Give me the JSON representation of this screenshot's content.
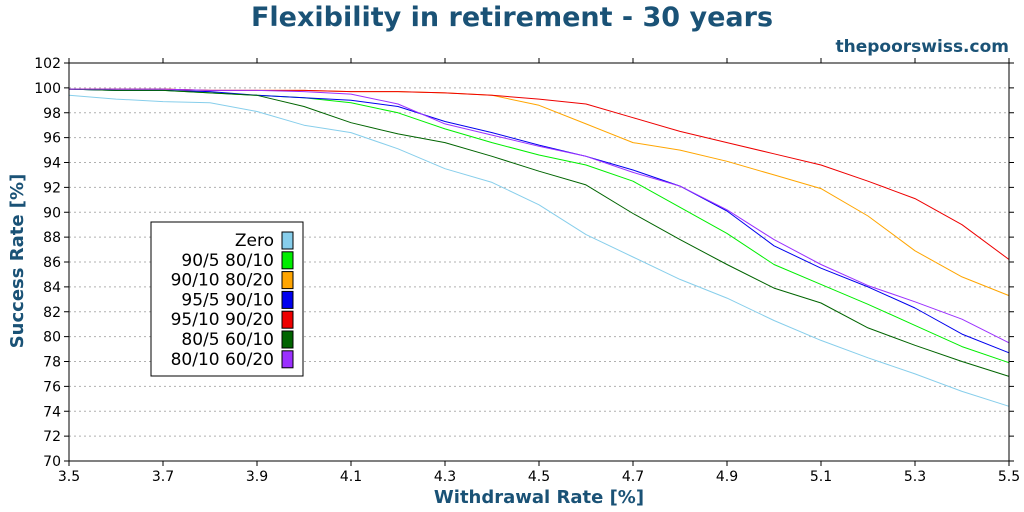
{
  "chart_data": {
    "type": "line",
    "title": "Flexibility in retirement - 30 years",
    "source": "thepoorswiss.com",
    "xlabel": "Withdrawal Rate [%]",
    "ylabel": "Success Rate [%]",
    "xlim": [
      3.5,
      5.5
    ],
    "ylim": [
      70,
      102
    ],
    "x_ticks": [
      "3.5",
      "3.7",
      "3.9",
      "4.1",
      "4.3",
      "4.5",
      "4.7",
      "4.9",
      "5.1",
      "5.3",
      "5.5"
    ],
    "y_ticks": [
      "70",
      "72",
      "74",
      "76",
      "78",
      "80",
      "82",
      "84",
      "86",
      "88",
      "90",
      "92",
      "94",
      "96",
      "98",
      "100",
      "102"
    ],
    "grid": "horizontal dotted",
    "legend_position": "center-left",
    "x": [
      3.5,
      3.6,
      3.7,
      3.8,
      3.9,
      4.0,
      4.1,
      4.2,
      4.3,
      4.4,
      4.5,
      4.6,
      4.7,
      4.8,
      4.9,
      5.0,
      5.1,
      5.2,
      5.3,
      5.4,
      5.5
    ],
    "series": [
      {
        "name": "Zero",
        "color": "#87CEEB",
        "values": [
          99.4,
          99.1,
          98.9,
          98.8,
          98.1,
          97.0,
          96.4,
          95.1,
          93.5,
          92.4,
          90.6,
          88.2,
          86.4,
          84.6,
          83.1,
          81.3,
          79.7,
          78.3,
          77.0,
          75.6,
          74.4
        ]
      },
      {
        "name": "90/5 80/10",
        "color": "#00EE00",
        "values": [
          99.9,
          99.8,
          99.8,
          99.6,
          99.4,
          99.2,
          98.8,
          98.0,
          96.7,
          95.6,
          94.6,
          93.8,
          92.5,
          90.4,
          88.3,
          85.8,
          84.2,
          82.6,
          80.9,
          79.2,
          77.9
        ]
      },
      {
        "name": "90/10 80/20",
        "color": "#FFA500",
        "values": [
          99.9,
          99.9,
          99.9,
          99.8,
          99.8,
          99.8,
          99.7,
          99.7,
          99.6,
          99.4,
          98.6,
          97.1,
          95.6,
          95.0,
          94.1,
          93.0,
          91.9,
          89.7,
          86.9,
          84.8,
          83.3
        ]
      },
      {
        "name": "95/5 90/10",
        "color": "#0000EE",
        "values": [
          99.9,
          99.8,
          99.8,
          99.7,
          99.4,
          99.2,
          99.0,
          98.5,
          97.3,
          96.4,
          95.4,
          94.5,
          93.4,
          92.1,
          90.1,
          87.3,
          85.5,
          84.0,
          82.3,
          80.2,
          78.7
        ]
      },
      {
        "name": "95/10 90/20",
        "color": "#EE0000",
        "values": [
          99.9,
          99.9,
          99.9,
          99.8,
          99.8,
          99.8,
          99.7,
          99.7,
          99.6,
          99.4,
          99.1,
          98.7,
          97.6,
          96.5,
          95.6,
          94.7,
          93.8,
          92.5,
          91.1,
          89.0,
          86.2
        ]
      },
      {
        "name": "80/5 60/10",
        "color": "#006400",
        "values": [
          99.9,
          99.8,
          99.8,
          99.6,
          99.4,
          98.5,
          97.2,
          96.3,
          95.6,
          94.5,
          93.3,
          92.2,
          89.9,
          87.8,
          85.8,
          83.9,
          82.7,
          80.7,
          79.3,
          78.0,
          76.8
        ]
      },
      {
        "name": "80/10 60/20",
        "color": "#9B30FF",
        "values": [
          99.9,
          99.9,
          99.9,
          99.8,
          99.8,
          99.7,
          99.5,
          98.7,
          97.1,
          96.2,
          95.3,
          94.5,
          93.2,
          92.1,
          90.2,
          87.8,
          85.8,
          84.1,
          82.8,
          81.4,
          79.5
        ]
      }
    ]
  }
}
